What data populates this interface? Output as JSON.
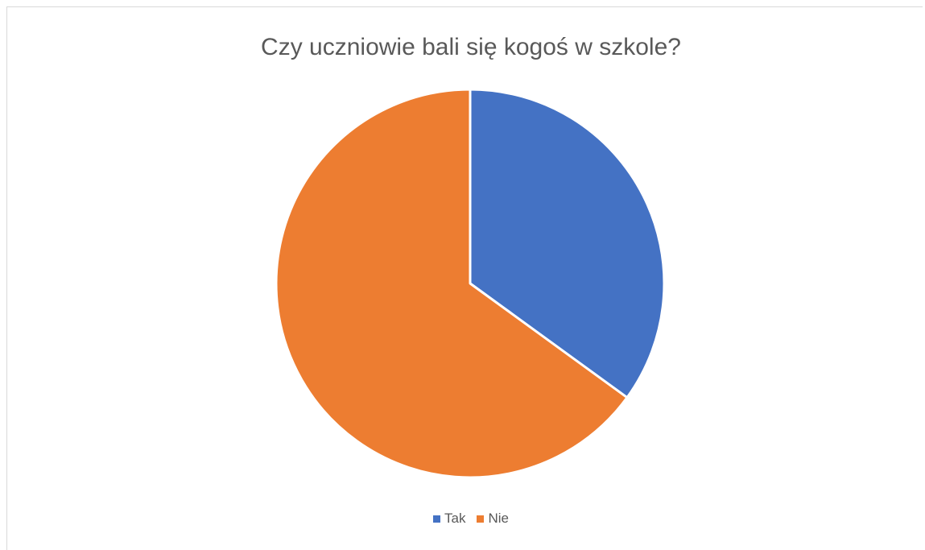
{
  "chart_data": {
    "type": "pie",
    "title": "Czy uczniowie bali się kogoś w szkole?",
    "categories": [
      "Tak",
      "Nie"
    ],
    "values": [
      35,
      65
    ],
    "colors": [
      "#4472c4",
      "#ed7d31"
    ],
    "legend": "bottom"
  }
}
